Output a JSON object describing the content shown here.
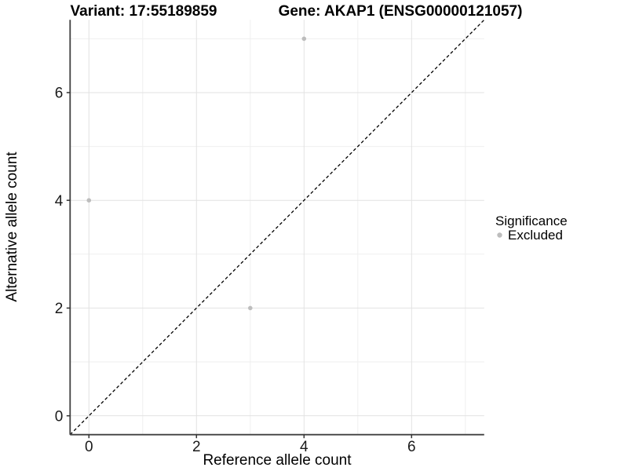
{
  "chart_data": {
    "type": "scatter",
    "title_left": "Variant: 17:55189859",
    "title_right": "Gene: AKAP1 (ENSG00000121057)",
    "xlabel": "Reference allele count",
    "ylabel": "Alternative allele count",
    "xlim": [
      -0.35,
      7.35
    ],
    "ylim": [
      -0.35,
      7.35
    ],
    "xticks": [
      0,
      2,
      4,
      6
    ],
    "yticks": [
      0,
      2,
      4,
      6
    ],
    "x_minor_ticks": [
      1,
      3,
      5,
      7
    ],
    "y_minor_ticks": [
      1,
      3,
      5,
      7
    ],
    "grid": "on",
    "identity_line": {
      "style": "dashed",
      "color": "#000000",
      "from": [
        -0.35,
        -0.35
      ],
      "to": [
        7.35,
        7.35
      ]
    },
    "series": [
      {
        "name": "Excluded",
        "color": "#bdbdbd",
        "points": [
          [
            0,
            4
          ],
          [
            3,
            2
          ],
          [
            4,
            7
          ]
        ]
      }
    ],
    "legend": {
      "title": "Significance",
      "position": "right",
      "items": [
        {
          "label": "Excluded",
          "color": "#bdbdbd",
          "marker": "circle"
        }
      ]
    },
    "colors": {
      "background": "#ffffff",
      "axis_line": "#404040",
      "tick_mark": "#333333",
      "grid_major": "#e2e2e2",
      "grid_minor": "#efefef",
      "point": "#bdbdbd"
    }
  }
}
